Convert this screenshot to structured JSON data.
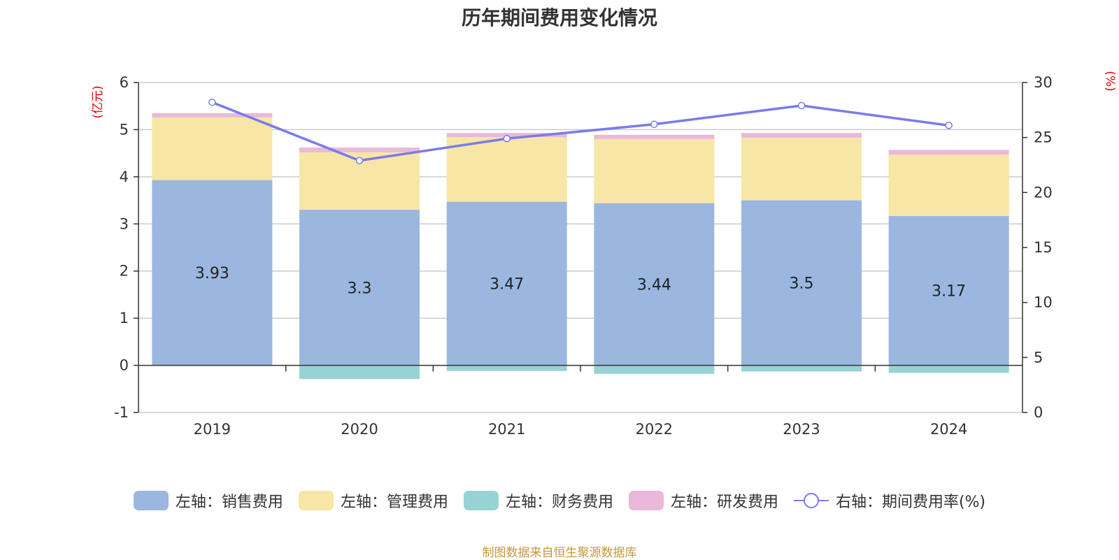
{
  "chart_data": {
    "type": "bar",
    "title": "历年期间费用变化情况",
    "categories": [
      "2019",
      "2020",
      "2021",
      "2022",
      "2023",
      "2024"
    ],
    "left_axis": {
      "unit": "(亿元)",
      "ylim": [
        -1,
        6
      ],
      "ticks": [
        "6",
        "5",
        "4",
        "3",
        "2",
        "1",
        "0",
        "-1"
      ]
    },
    "right_axis": {
      "unit": "(%)",
      "ylim": [
        0,
        30
      ],
      "ticks": [
        "30",
        "25",
        "20",
        "15",
        "10",
        "5",
        "0"
      ]
    },
    "series": [
      {
        "name": "左轴：销售费用",
        "type": "bar",
        "axis": "left",
        "color": "#9bb7e0",
        "values": [
          3.93,
          3.3,
          3.47,
          3.44,
          3.5,
          3.17
        ],
        "labels": [
          "3.93",
          "3.3",
          "3.47",
          "3.44",
          "3.5",
          "3.17"
        ]
      },
      {
        "name": "左轴：管理费用",
        "type": "bar",
        "axis": "left",
        "color": "#f7e6a6",
        "values": [
          1.33,
          1.22,
          1.37,
          1.36,
          1.33,
          1.3
        ]
      },
      {
        "name": "左轴：财务费用",
        "type": "bar",
        "axis": "left",
        "color": "#96d4d4",
        "values": [
          -0.01,
          -0.29,
          -0.12,
          -0.18,
          -0.13,
          -0.16
        ]
      },
      {
        "name": "左轴：研发费用",
        "type": "bar",
        "axis": "left",
        "color": "#e9b8da",
        "values": [
          0.09,
          0.1,
          0.09,
          0.09,
          0.1,
          0.1
        ]
      },
      {
        "name": "右轴：期间费用率(%)",
        "type": "line",
        "axis": "right",
        "color": "#7b7bea",
        "values": [
          28.2,
          22.9,
          24.9,
          26.2,
          27.9,
          26.1
        ]
      }
    ]
  },
  "source_note": "制图数据来自恒生聚源数据库"
}
